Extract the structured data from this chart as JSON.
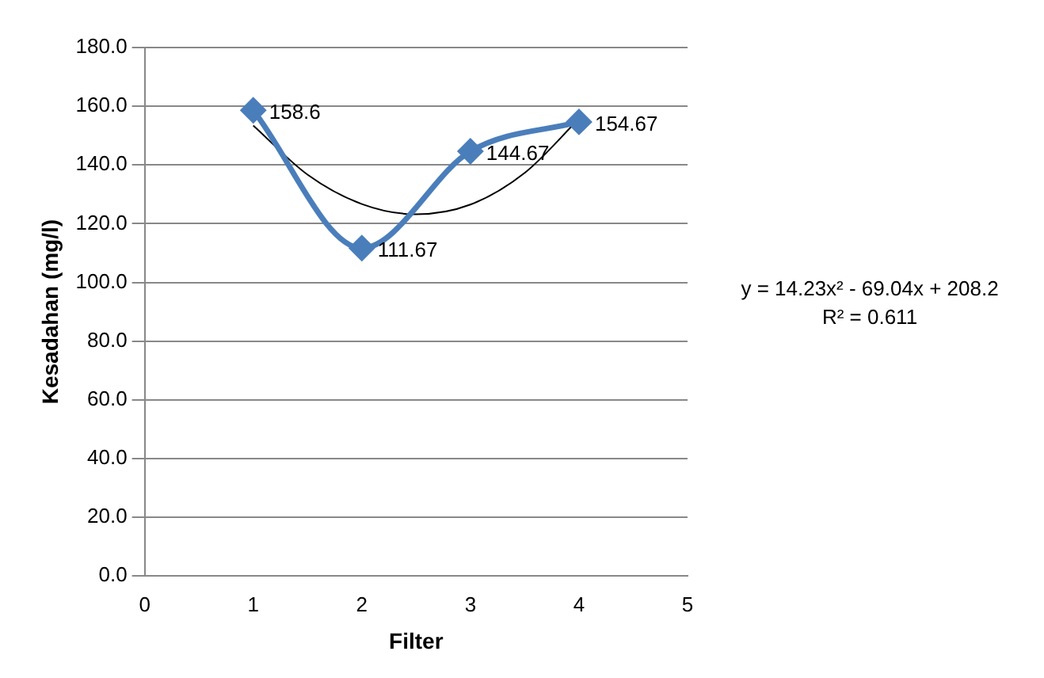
{
  "chart_data": {
    "type": "line",
    "xlabel": "Filter",
    "ylabel": "Kesadahan (mg/l)",
    "xlim": [
      0,
      5
    ],
    "xticks": [
      0,
      1,
      2,
      3,
      4,
      5
    ],
    "ylim": [
      0,
      180
    ],
    "yticks": [
      {
        "value": 0,
        "label": "0.0"
      },
      {
        "value": 20,
        "label": "20.0"
      },
      {
        "value": 40,
        "label": "40.0"
      },
      {
        "value": 60,
        "label": "60.0"
      },
      {
        "value": 80,
        "label": "80.0"
      },
      {
        "value": 100,
        "label": "100.0"
      },
      {
        "value": 120,
        "label": "120.0"
      },
      {
        "value": 140,
        "label": "140.0"
      },
      {
        "value": 160,
        "label": "160.0"
      },
      {
        "value": 180,
        "label": "180.0"
      }
    ],
    "grid": "y",
    "legend": false,
    "marker": "diamond",
    "series": [
      {
        "color": "#4a7ebb",
        "x": [
          1,
          2,
          3,
          4
        ],
        "values": [
          158.6,
          111.67,
          144.67,
          154.67
        ],
        "value_labels": [
          "158.6",
          "111.67",
          "144.67",
          "154.67"
        ]
      },
      {
        "type": "line",
        "color": "#000000",
        "marker": "none",
        "x": [
          1,
          1.5,
          2,
          2.5,
          3,
          3.5,
          4
        ],
        "values": [
          153.4,
          136.7,
          126.7,
          123.2,
          126.5,
          137.3,
          155.7
        ]
      }
    ],
    "annotations": [
      "y = 14.23x² - 69.04x + 208.2",
      "R² = 0.611"
    ]
  }
}
